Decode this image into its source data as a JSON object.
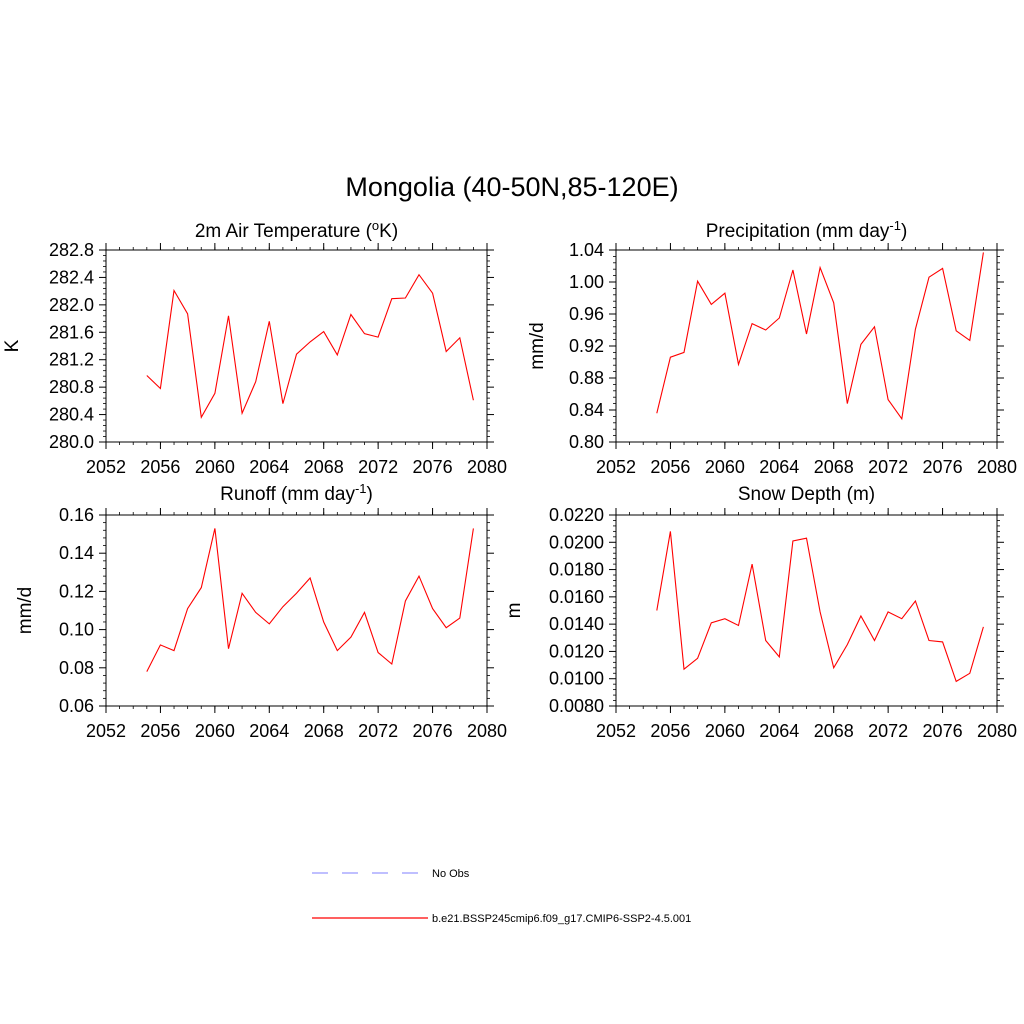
{
  "title": "Mongolia (40-50N,85-120E)",
  "legend": [
    {
      "label": "No Obs",
      "color": "#9999ff",
      "style": "dashed"
    },
    {
      "label": "b.e21.BSSP245cmip6.f09_g17.CMIP6-SSP2-4.5.001",
      "color": "#ff0000",
      "style": "solid"
    }
  ],
  "chart_data": [
    {
      "type": "line",
      "title": "2m Air Temperature (",
      "title_super": "o",
      "title_after": "K)",
      "ylabel": "K",
      "xlim": [
        2052,
        2080
      ],
      "ylim": [
        280.0,
        282.8
      ],
      "x_ticks": [
        2052,
        2056,
        2060,
        2064,
        2068,
        2072,
        2076,
        2080
      ],
      "y_ticks": [
        "280.0",
        "280.4",
        "280.8",
        "281.2",
        "281.6",
        "282.0",
        "282.4",
        "282.8"
      ],
      "color": "#ff0000",
      "x": [
        2055,
        2056,
        2057,
        2058,
        2059,
        2060,
        2061,
        2062,
        2063,
        2064,
        2065,
        2066,
        2067,
        2068,
        2069,
        2070,
        2071,
        2072,
        2073,
        2074,
        2075,
        2076,
        2077,
        2078,
        2079
      ],
      "y": [
        280.97,
        280.78,
        282.21,
        281.87,
        280.36,
        280.71,
        281.84,
        280.42,
        280.88,
        281.76,
        280.56,
        281.28,
        281.46,
        281.61,
        281.27,
        281.86,
        281.58,
        281.53,
        282.09,
        282.1,
        282.44,
        282.17,
        281.32,
        281.52,
        280.61
      ]
    },
    {
      "type": "line",
      "title": "Precipitation (mm day",
      "title_super": "-1",
      "title_after": ")",
      "ylabel": "mm/d",
      "xlim": [
        2052,
        2080
      ],
      "ylim": [
        0.8,
        1.04
      ],
      "x_ticks": [
        2052,
        2056,
        2060,
        2064,
        2068,
        2072,
        2076,
        2080
      ],
      "y_ticks": [
        "0.80",
        "0.84",
        "0.88",
        "0.92",
        "0.96",
        "1.00",
        "1.04"
      ],
      "color": "#ff0000",
      "x": [
        2055,
        2056,
        2057,
        2058,
        2059,
        2060,
        2061,
        2062,
        2063,
        2064,
        2065,
        2066,
        2067,
        2068,
        2069,
        2070,
        2071,
        2072,
        2073,
        2074,
        2075,
        2076,
        2077,
        2078,
        2079
      ],
      "y": [
        0.836,
        0.906,
        0.912,
        1.001,
        0.972,
        0.986,
        0.897,
        0.948,
        0.94,
        0.955,
        1.015,
        0.935,
        1.018,
        0.974,
        0.848,
        0.922,
        0.944,
        0.853,
        0.829,
        0.941,
        1.006,
        1.017,
        0.939,
        0.927,
        1.037
      ]
    },
    {
      "type": "line",
      "title": "Runoff (mm day",
      "title_super": "-1",
      "title_after": ")",
      "ylabel": "mm/d",
      "xlim": [
        2052,
        2080
      ],
      "ylim": [
        0.06,
        0.16
      ],
      "x_ticks": [
        2052,
        2056,
        2060,
        2064,
        2068,
        2072,
        2076,
        2080
      ],
      "y_ticks": [
        "0.06",
        "0.08",
        "0.10",
        "0.12",
        "0.14",
        "0.16"
      ],
      "color": "#ff0000",
      "x": [
        2055,
        2056,
        2057,
        2058,
        2059,
        2060,
        2061,
        2062,
        2063,
        2064,
        2065,
        2066,
        2067,
        2068,
        2069,
        2070,
        2071,
        2072,
        2073,
        2074,
        2075,
        2076,
        2077,
        2078,
        2079
      ],
      "y": [
        0.078,
        0.092,
        0.089,
        0.111,
        0.122,
        0.153,
        0.09,
        0.119,
        0.109,
        0.103,
        0.112,
        0.119,
        0.127,
        0.104,
        0.089,
        0.096,
        0.109,
        0.088,
        0.082,
        0.115,
        0.128,
        0.111,
        0.101,
        0.106,
        0.153
      ]
    },
    {
      "type": "line",
      "title": "Snow Depth (m)",
      "title_super": "",
      "title_after": "",
      "ylabel": "m",
      "xlim": [
        2052,
        2080
      ],
      "ylim": [
        0.008,
        0.022
      ],
      "x_ticks": [
        2052,
        2056,
        2060,
        2064,
        2068,
        2072,
        2076,
        2080
      ],
      "y_ticks": [
        "0.0080",
        "0.0100",
        "0.0120",
        "0.0140",
        "0.0160",
        "0.0180",
        "0.0200",
        "0.0220"
      ],
      "color": "#ff0000",
      "x": [
        2055,
        2056,
        2057,
        2058,
        2059,
        2060,
        2061,
        2062,
        2063,
        2064,
        2065,
        2066,
        2067,
        2068,
        2069,
        2070,
        2071,
        2072,
        2073,
        2074,
        2075,
        2076,
        2077,
        2078,
        2079
      ],
      "y": [
        0.015,
        0.0208,
        0.0107,
        0.0115,
        0.0141,
        0.0144,
        0.0139,
        0.0184,
        0.0128,
        0.0116,
        0.0201,
        0.0203,
        0.0149,
        0.0108,
        0.0125,
        0.0146,
        0.0128,
        0.0149,
        0.0144,
        0.0157,
        0.0128,
        0.0127,
        0.0098,
        0.0104,
        0.0138
      ]
    }
  ]
}
